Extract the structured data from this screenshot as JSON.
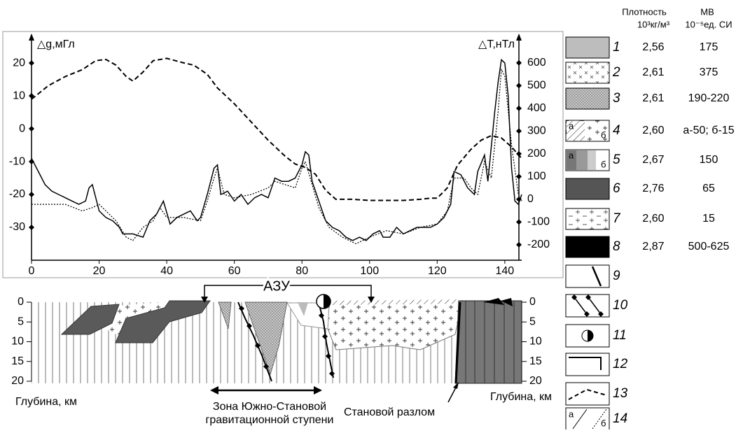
{
  "chart_data": {
    "type": "line",
    "y_label": "△g,мГл",
    "y2_label": "△T,нТл",
    "xlim": [
      0,
      145
    ],
    "xticks": [
      0,
      20,
      40,
      60,
      80,
      100,
      120,
      140
    ],
    "ylim": [
      -40,
      26.4
    ],
    "yticks": [
      -30,
      -20,
      -10,
      0,
      10,
      20
    ],
    "y2lim": [
      -268,
      692
    ],
    "y2ticks": [
      -200,
      -100,
      0,
      100,
      200,
      300,
      400,
      500,
      600
    ],
    "series": [
      {
        "color": "#000000",
        "style": "solid",
        "x": [
          0,
          2,
          4,
          6,
          8,
          10,
          12,
          14,
          16,
          17,
          18,
          20,
          22,
          24,
          26,
          27,
          30,
          33,
          35,
          37,
          39,
          41,
          43,
          45,
          47,
          49,
          50,
          52,
          54,
          55,
          56,
          58,
          60,
          62,
          64,
          66,
          68,
          70,
          72,
          74,
          76,
          78,
          80,
          81,
          82,
          83,
          85,
          87,
          89,
          91,
          93,
          95,
          97,
          99,
          101,
          103,
          104,
          106,
          108,
          110,
          112,
          114,
          116,
          118,
          120,
          122,
          124,
          125,
          127,
          129,
          131,
          132,
          134,
          135,
          137,
          138,
          139,
          140,
          141,
          142,
          143,
          144,
          145
        ],
        "values": [
          -9,
          -13,
          -17,
          -19,
          -20,
          -21,
          -22,
          -23,
          -22,
          -18,
          -17,
          -25,
          -27,
          -28,
          -30,
          -32,
          -32,
          -33,
          -28,
          -26,
          -22,
          -29,
          -27,
          -26,
          -25,
          -28,
          -27,
          -20,
          -12,
          -11,
          -20,
          -19,
          -22,
          -20,
          -23,
          -21,
          -20,
          -21,
          -15,
          -16,
          -16,
          -15,
          -11,
          -7,
          -8,
          -16,
          -22,
          -28,
          -30,
          -31,
          -33,
          -34,
          -33,
          -34,
          -32,
          -31,
          -33,
          -33,
          -30,
          -32,
          -31,
          -30,
          -30,
          -30,
          -29,
          -27,
          -23,
          -13,
          -14,
          -18,
          -20,
          -13,
          -8,
          -16,
          5,
          14,
          21,
          20,
          10,
          -12,
          -22,
          -23,
          -20
        ]
      },
      {
        "color": "#000000",
        "style": "dotted",
        "x": [
          0,
          5,
          10,
          15,
          18,
          20,
          22,
          25,
          28,
          30,
          33,
          36,
          38,
          40,
          45,
          50,
          52,
          54,
          55,
          57,
          60,
          65,
          70,
          72,
          75,
          78,
          80,
          81,
          83,
          85,
          88,
          92,
          96,
          100,
          105,
          110,
          115,
          120,
          123,
          125,
          128,
          130,
          132,
          134,
          136,
          138,
          139,
          140,
          142,
          144,
          145
        ],
        "values": [
          -23,
          -23,
          -23,
          -25,
          -24,
          -23,
          -25,
          -28,
          -33,
          -34,
          -30,
          -28,
          -24,
          -27,
          -27,
          -28,
          -22,
          -15,
          -12,
          -20,
          -21,
          -20,
          -18,
          -16,
          -17,
          -18,
          -12,
          -10,
          -17,
          -24,
          -30,
          -33,
          -35,
          -33,
          -31,
          -32,
          -30,
          -29,
          -25,
          -15,
          -15,
          -18,
          -20,
          -10,
          -15,
          5,
          18,
          16,
          -5,
          -20,
          -22
        ]
      },
      {
        "color": "#000000",
        "style": "dashed",
        "axis": "y2",
        "x": [
          0,
          5,
          10,
          15,
          19,
          22,
          25,
          28,
          30,
          33,
          36,
          40,
          45,
          48,
          52,
          55,
          60,
          65,
          70,
          75,
          78,
          81,
          84,
          87,
          90,
          95,
          100,
          105,
          110,
          115,
          118,
          120,
          123,
          126,
          130,
          133,
          136,
          139,
          142,
          145
        ],
        "values": [
          440,
          500,
          540,
          570,
          610,
          615,
          590,
          540,
          520,
          560,
          610,
          620,
          600,
          590,
          550,
          490,
          420,
          340,
          260,
          190,
          155,
          140,
          110,
          40,
          0,
          0,
          -5,
          -5,
          -5,
          0,
          5,
          5,
          50,
          150,
          220,
          260,
          280,
          270,
          230,
          180
        ]
      }
    ]
  },
  "section": {
    "depth_ticks": [
      0,
      5,
      10,
      15,
      20
    ],
    "depth_label": "Глубина, км",
    "azu": "АЗУ",
    "zone": [
      "Зона Южно-Становой",
      "гравитационной ступени"
    ],
    "fault": "Становой разлом"
  },
  "legend": {
    "density_header": [
      "Плотность",
      "10³кг/м³"
    ],
    "mv_header": [
      "МВ",
      "10⁻⁵ед. СИ"
    ],
    "items": [
      {
        "number": "1",
        "density": "2,56",
        "mv": "175"
      },
      {
        "number": "2",
        "density": "2,61",
        "mv": "375"
      },
      {
        "number": "3",
        "density": "2,61",
        "mv": "190-220"
      },
      {
        "number": "4",
        "density": "2,60",
        "mv": "а-50; б-15",
        "sublabels": [
          "а",
          "б"
        ]
      },
      {
        "number": "5",
        "density": "2,67",
        "mv": "150",
        "sublabels": [
          "а",
          "б"
        ]
      },
      {
        "number": "6",
        "density": "2,76",
        "mv": "65"
      },
      {
        "number": "7",
        "density": "2,60",
        "mv": "15"
      },
      {
        "number": "8",
        "density": "2,87",
        "mv": "500-625"
      },
      {
        "number": "9"
      },
      {
        "number": "10"
      },
      {
        "number": "11"
      },
      {
        "number": "12"
      },
      {
        "number": "13"
      },
      {
        "number": "14",
        "sublabels": [
          "а",
          "б"
        ]
      }
    ]
  }
}
